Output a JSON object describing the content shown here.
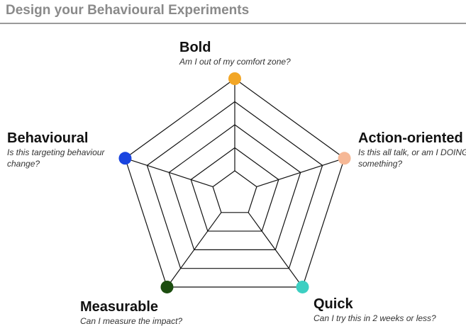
{
  "header": {
    "title": "Design your Behavioural Experiments"
  },
  "axes": [
    {
      "label": "Bold",
      "question": [
        "Am I out of my comfort zone?"
      ],
      "color": "#f2a626"
    },
    {
      "label": "Action-oriented",
      "question": [
        "Is this all talk, or am I DOING",
        "something?"
      ],
      "color": "#f6b896"
    },
    {
      "label": "Quick",
      "question": [
        "Can I try this in 2 weeks or less?"
      ],
      "color": "#3ccfc2"
    },
    {
      "label": "Measurable",
      "question": [
        "Can I measure the impact?"
      ],
      "color": "#1c4d0f"
    },
    {
      "label": "Behavioural",
      "question": [
        "Is this targeting behaviour",
        "change?"
      ],
      "color": "#1a45e0"
    }
  ]
}
